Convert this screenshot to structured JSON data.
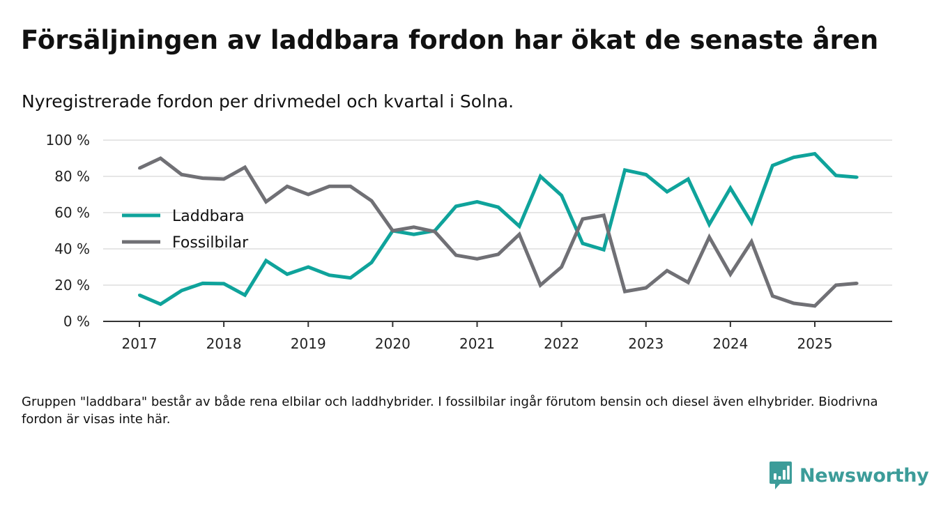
{
  "title": "Försäljningen av laddbara fordon har ökat de senaste åren",
  "subtitle": "Nyregistrerade fordon per drivmedel och kvartal i Solna.",
  "footnote": "Gruppen \"laddbara\" består av både rena elbilar och laddhybrider. I fossilbilar ingår förutom bensin och diesel även elhybrider. Biodrivna fordon är visas inte här.",
  "brand": {
    "name": "Newsworthy",
    "icon": "bar-chart-icon",
    "color": "#3c9c99"
  },
  "chart_data": {
    "type": "line",
    "title": "Försäljningen av laddbara fordon har ökat de senaste åren",
    "subtitle": "Nyregistrerade fordon per drivmedel och kvartal i Solna.",
    "xlabel": "",
    "ylabel": "",
    "ylim": [
      0,
      100
    ],
    "yticks": [
      0,
      20,
      40,
      60,
      80,
      100
    ],
    "ytick_labels": [
      "0 %",
      "20 %",
      "40 %",
      "60 %",
      "80 %",
      "100 %"
    ],
    "xlim": [
      2016.6,
      2025.9
    ],
    "xticks": [
      2017,
      2018,
      2019,
      2020,
      2021,
      2022,
      2023,
      2024,
      2025
    ],
    "xtick_labels": [
      "2017",
      "2018",
      "2019",
      "2020",
      "2021",
      "2022",
      "2023",
      "2024",
      "2025"
    ],
    "grid": true,
    "legend_position": "left-middle",
    "x": [
      2017.0,
      2017.25,
      2017.5,
      2017.75,
      2018.0,
      2018.25,
      2018.5,
      2018.75,
      2019.0,
      2019.25,
      2019.5,
      2019.75,
      2020.0,
      2020.25,
      2020.5,
      2020.75,
      2021.0,
      2021.25,
      2021.5,
      2021.75,
      2022.0,
      2022.25,
      2022.5,
      2022.75,
      2023.0,
      2023.25,
      2023.5,
      2023.75,
      2024.0,
      2024.25,
      2024.5,
      2024.75,
      2025.0,
      2025.25,
      2025.5
    ],
    "series": [
      {
        "name": "Laddbara",
        "color": "#0fa39b",
        "values": [
          14.5,
          9.5,
          17,
          21,
          20.8,
          14.5,
          33.5,
          26,
          30,
          25.5,
          24,
          32.5,
          50,
          48,
          50,
          63.5,
          66,
          63,
          52.5,
          80,
          69.5,
          43,
          39.5,
          83.5,
          81,
          71.5,
          78.5,
          53.5,
          73.5,
          54.5,
          86,
          90.5,
          92.5,
          80.5,
          79.5
        ]
      },
      {
        "name": "Fossilbilar",
        "color": "#707075",
        "values": [
          84.5,
          90,
          81,
          79,
          78.5,
          85,
          66,
          74.5,
          70,
          74.5,
          74.5,
          66.5,
          50,
          52,
          49.5,
          36.5,
          34.5,
          37,
          48,
          20,
          30,
          56.5,
          58.5,
          16.5,
          18.5,
          28,
          21.5,
          46.5,
          26,
          44,
          14,
          10,
          8.5,
          20,
          21
        ]
      }
    ]
  }
}
